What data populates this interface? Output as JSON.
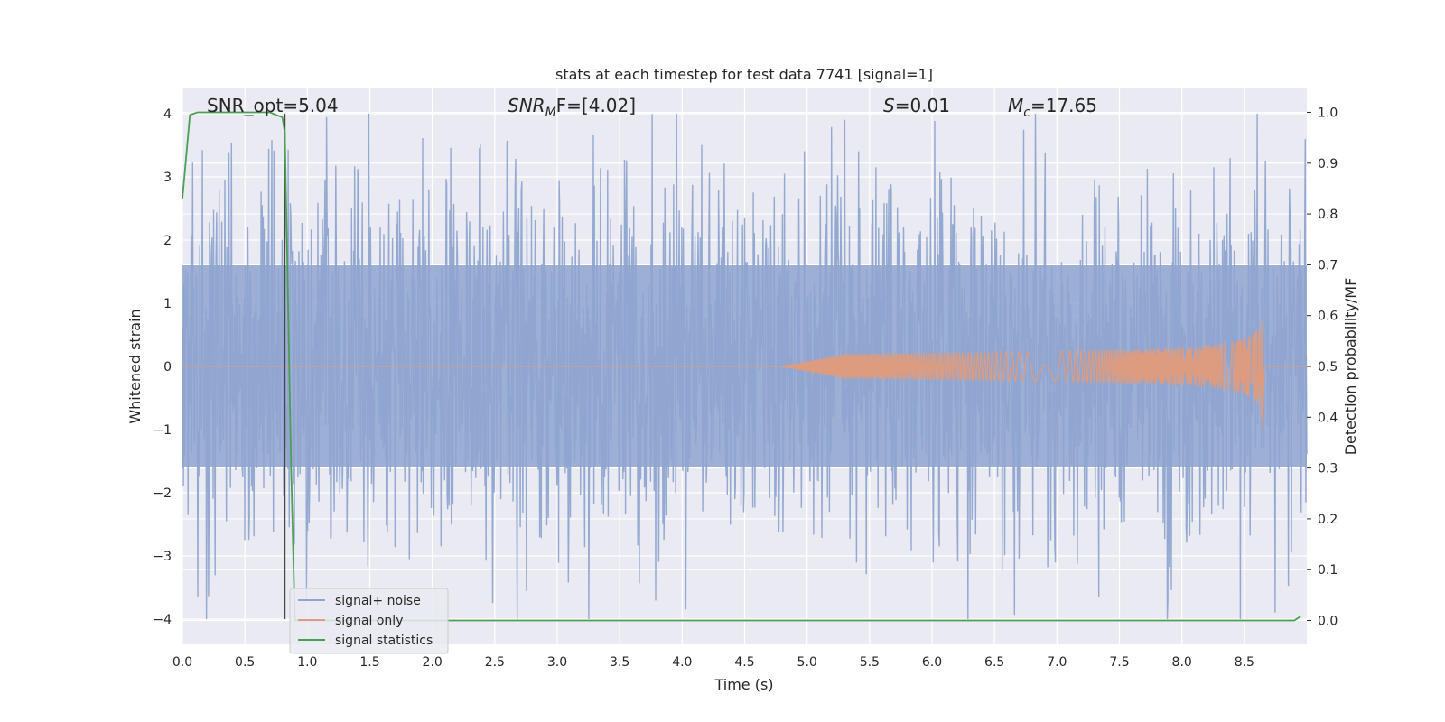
{
  "chart_data": {
    "type": "line",
    "title": "stats at each timestep for test data 7741 [signal=1]",
    "xlabel": "Time (s)",
    "ylabel": "Whitened strain",
    "y2label": "Detection probability/MF",
    "xlim": [
      0.0,
      9.0
    ],
    "ylim": [
      -4.4,
      4.4
    ],
    "y2lim": [
      -0.047,
      1.047
    ],
    "grid": true,
    "legend_position": "lower-left",
    "x_ticks": [
      "0.0",
      "0.5",
      "1.0",
      "1.5",
      "2.0",
      "2.5",
      "3.0",
      "3.5",
      "4.0",
      "4.5",
      "5.0",
      "5.5",
      "6.0",
      "6.5",
      "7.0",
      "7.5",
      "8.0",
      "8.5"
    ],
    "y_ticks": [
      "4",
      "3",
      "2",
      "1",
      "0",
      "−1",
      "−2",
      "−3",
      "−4"
    ],
    "y2_ticks": [
      "1.0",
      "0.9",
      "0.8",
      "0.7",
      "0.6",
      "0.5",
      "0.4",
      "0.3",
      "0.2",
      "0.1",
      "0.0"
    ],
    "annotations": {
      "snr_opt": "SNR_opt=5.04",
      "snr_mf_sym": "SNR",
      "snr_mf_sub": "M",
      "snr_mf_rest": "F=[4.02]",
      "s_sym": "S",
      "s_val": "=0.01",
      "mc_sym": "M",
      "mc_sub": "c",
      "mc_val": "=17.65"
    },
    "vertical_line_x": 0.82,
    "series": [
      {
        "name": "signal+ noise",
        "color": "#8fa5cf",
        "kind": "noise",
        "typical_amplitude": 1.6,
        "peak_max": 4.0,
        "peak_min": -4.0
      },
      {
        "name": "signal only",
        "color": "#dd9c80",
        "kind": "chirp",
        "start_x": 4.8,
        "merger_x": 8.65,
        "peak_amplitude": 1.1
      },
      {
        "name": "signal statistics",
        "color": "#4c9e56",
        "kind": "probability",
        "x": [
          0.0,
          0.06,
          0.12,
          0.5,
          0.7,
          0.8,
          0.82,
          0.87,
          0.9,
          2.5,
          8.9,
          8.95
        ],
        "y": [
          0.83,
          0.995,
          1.0,
          1.0,
          1.0,
          0.99,
          0.96,
          0.3,
          0.0,
          0.0,
          0.0,
          0.008
        ]
      }
    ]
  }
}
